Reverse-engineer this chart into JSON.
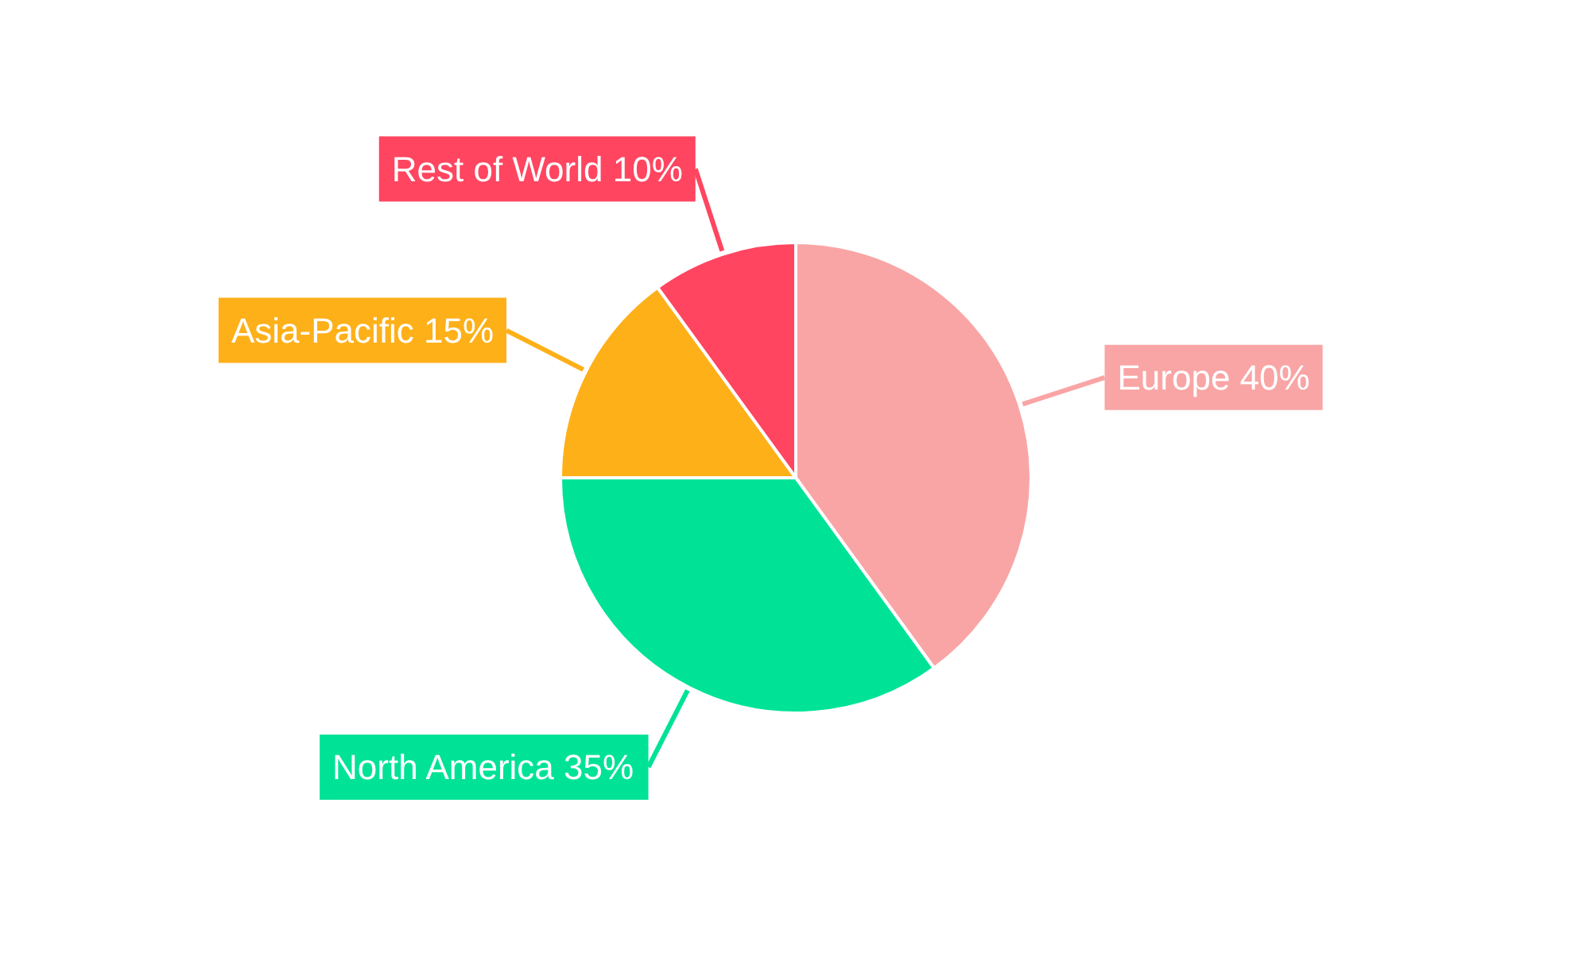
{
  "chart_data": {
    "type": "pie",
    "categories": [
      "Europe",
      "North America",
      "Asia-Pacific",
      "Rest of World"
    ],
    "values": [
      40,
      35,
      15,
      10
    ],
    "colors": [
      "#f9a5a5",
      "#00e396",
      "#feb019",
      "#ff4560"
    ],
    "value_labels": [
      "40%",
      "35%",
      "15%",
      "10%"
    ]
  }
}
